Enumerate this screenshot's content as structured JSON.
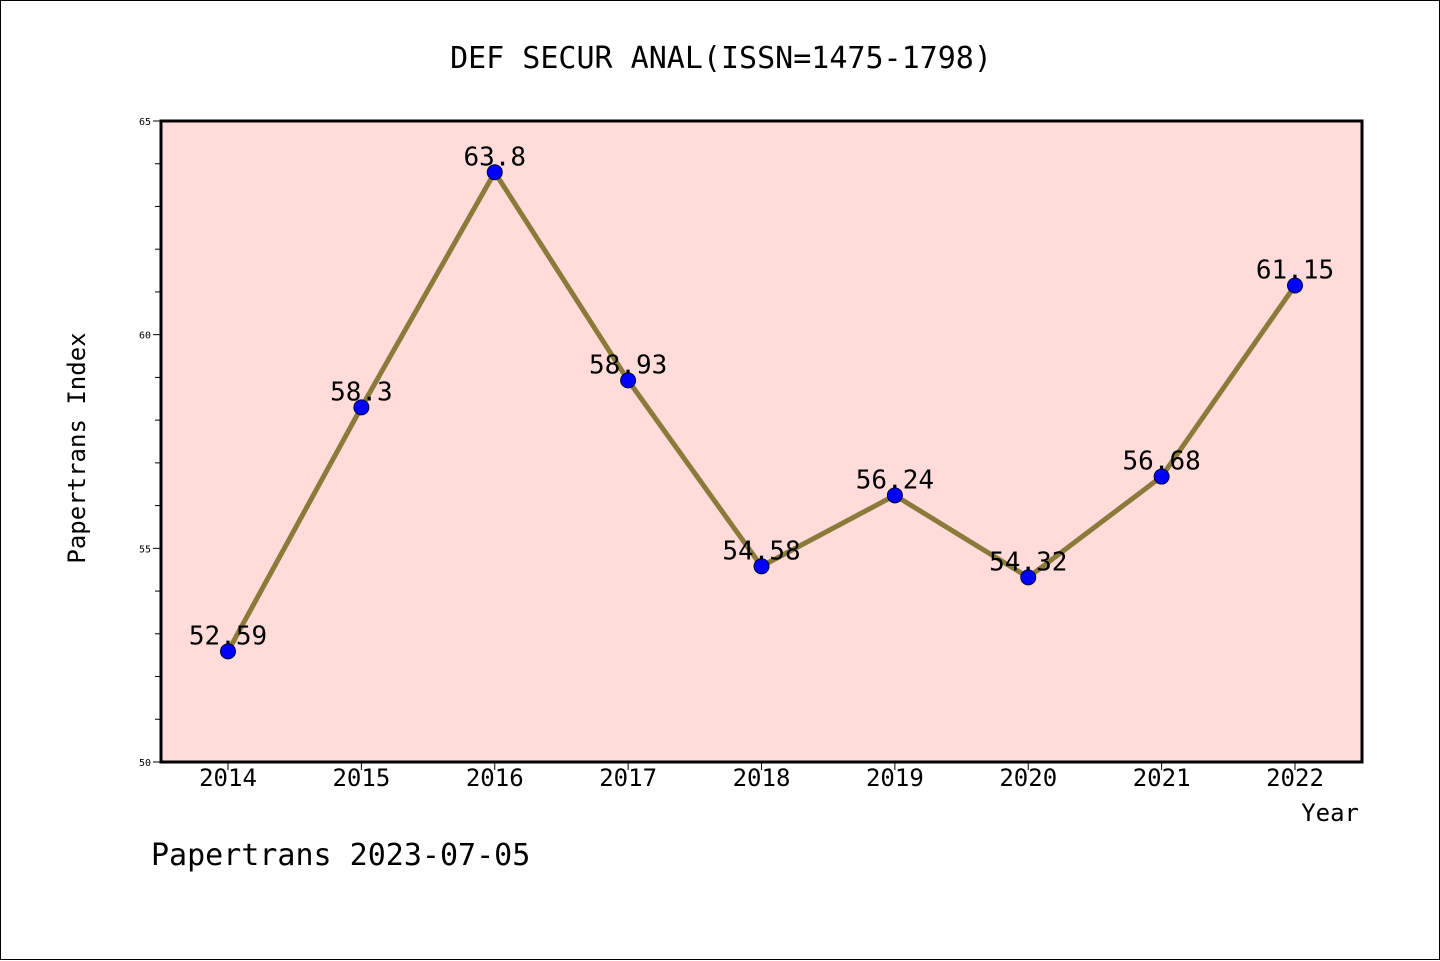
{
  "chart_data": {
    "type": "line",
    "title": "DEF SECUR ANAL(ISSN=1475-1798)",
    "xlabel": "Year",
    "ylabel": "Papertrans Index",
    "categories": [
      "2014",
      "2015",
      "2016",
      "2017",
      "2018",
      "2019",
      "2020",
      "2021",
      "2022"
    ],
    "series": [
      {
        "values": [
          52.59,
          58.3,
          63.8,
          58.93,
          54.58,
          56.24,
          54.32,
          56.68,
          61.15
        ],
        "labels": [
          "52.59",
          "58.3",
          "63.8",
          "58.93",
          "54.58",
          "56.24",
          "54.32",
          "56.68",
          "61.15"
        ]
      }
    ],
    "ylim": [
      50,
      65
    ],
    "yticks": [
      "50",
      "55",
      "60",
      "65"
    ],
    "grid": false,
    "legend": "none",
    "colors": {
      "plot_background": "#FFDCDA",
      "line": "#8B7A3A",
      "marker": "#0000FF"
    }
  },
  "footer": "Papertrans 2023-07-05"
}
